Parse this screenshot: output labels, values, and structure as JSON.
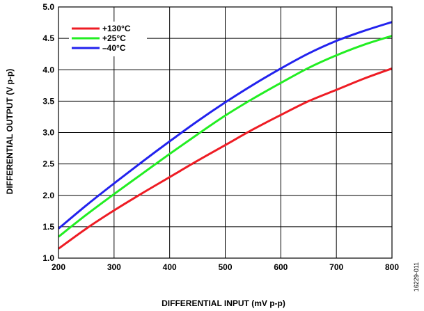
{
  "figure_code": "16229-011",
  "chart_data": {
    "type": "line",
    "xlabel": "DIFFERENTIAL INPUT (mV p-p)",
    "ylabel": "DIFFERENTIAL OUTPUT (V p-p)",
    "xlim": [
      200,
      800
    ],
    "ylim": [
      1.0,
      5.0
    ],
    "x_ticks": [
      "200",
      "300",
      "400",
      "500",
      "600",
      "700",
      "800"
    ],
    "y_ticks": [
      "1.0",
      "1.5",
      "2.0",
      "2.5",
      "3.0",
      "3.5",
      "4.0",
      "4.5",
      "5.0"
    ],
    "grid": true,
    "legend_position": "top-left",
    "x": [
      200,
      250,
      300,
      350,
      400,
      450,
      500,
      550,
      600,
      650,
      700,
      750,
      800
    ],
    "series": [
      {
        "name": "+130°C",
        "color": "#ee1c24",
        "values": [
          1.15,
          1.47,
          1.76,
          2.03,
          2.29,
          2.55,
          2.8,
          3.05,
          3.28,
          3.5,
          3.68,
          3.86,
          4.02
        ]
      },
      {
        "name": "+25°C",
        "color": "#22ee22",
        "values": [
          1.34,
          1.69,
          2.02,
          2.34,
          2.66,
          2.97,
          3.27,
          3.54,
          3.79,
          4.03,
          4.23,
          4.4,
          4.54
        ]
      },
      {
        "name": "–40°C",
        "color": "#2222ee",
        "values": [
          1.47,
          1.84,
          2.19,
          2.53,
          2.86,
          3.18,
          3.48,
          3.76,
          4.02,
          4.26,
          4.46,
          4.62,
          4.76
        ]
      }
    ]
  }
}
